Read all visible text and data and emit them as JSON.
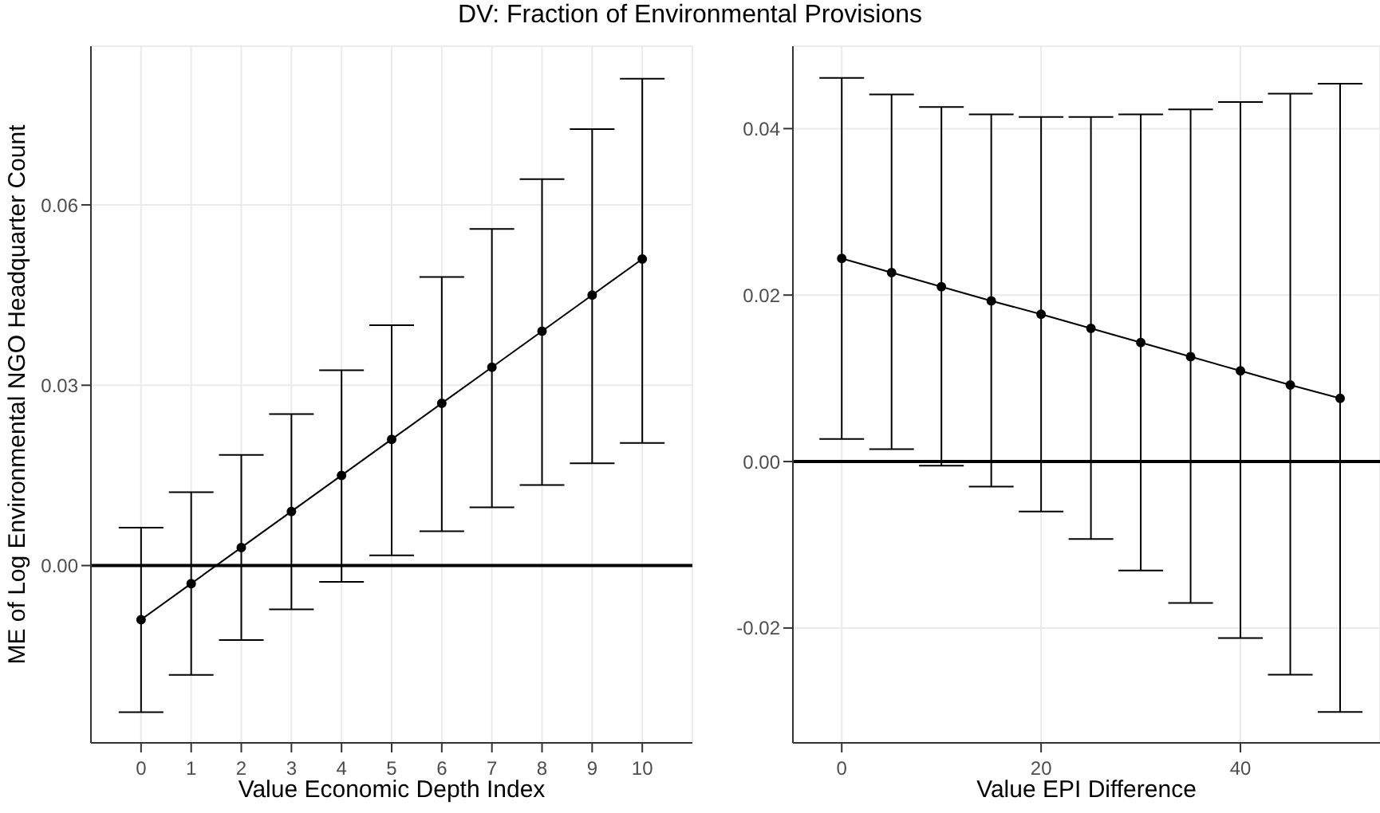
{
  "chart_data": [
    {
      "type": "line",
      "title": "DV: Fraction of Environmental Provisions",
      "xlabel": "Value Economic Depth Index",
      "ylabel": "ME of Log Environmental NGO Headquarter Count",
      "x": [
        0,
        1,
        2,
        3,
        4,
        5,
        6,
        7,
        8,
        9,
        10
      ],
      "series": [
        {
          "color": "#000000",
          "values": [
            -0.009,
            -0.003,
            0.003,
            0.009,
            0.015,
            0.021,
            0.027,
            0.033,
            0.039,
            0.045,
            0.051
          ],
          "errors": [
            [
              -0.0244,
              0.0063
            ],
            [
              -0.0182,
              0.0122
            ],
            [
              -0.0124,
              0.0184
            ],
            [
              -0.0073,
              0.0252
            ],
            [
              -0.0027,
              0.0325
            ],
            [
              0.0017,
              0.04
            ],
            [
              0.0057,
              0.048
            ],
            [
              0.0097,
              0.056
            ],
            [
              0.0134,
              0.0643
            ],
            [
              0.017,
              0.0726
            ],
            [
              0.0204,
              0.081
            ]
          ]
        }
      ],
      "xlim": [
        -1,
        11
      ],
      "xticks": [
        0,
        1,
        2,
        3,
        4,
        5,
        6,
        7,
        8,
        9,
        10
      ],
      "ylim": [
        -0.0295,
        0.0864
      ],
      "yticks": [
        {
          "value": 0,
          "label": "0.00"
        },
        {
          "value": 0.03,
          "label": "0.03"
        },
        {
          "value": 0.06,
          "label": "0.06"
        }
      ],
      "ref_lines": [
        {
          "axis": "y",
          "value": 0,
          "color": "#000000"
        }
      ],
      "grid": true,
      "marker": "circle",
      "legend": false
    },
    {
      "type": "line",
      "xlabel": "Value EPI Difference",
      "x": [
        0,
        5,
        10,
        15,
        20,
        25,
        30,
        35,
        40,
        45,
        50
      ],
      "series": [
        {
          "color": "#000000",
          "values": [
            0.0244,
            0.0227,
            0.021,
            0.0193,
            0.0177,
            0.016,
            0.0143,
            0.0126,
            0.0109,
            0.0092,
            0.0076
          ],
          "errors": [
            [
              0.0027,
              0.0461
            ],
            [
              0.0015,
              0.0441
            ],
            [
              -0.0005,
              0.0426
            ],
            [
              -0.003,
              0.0417
            ],
            [
              -0.006,
              0.0414
            ],
            [
              -0.0093,
              0.0414
            ],
            [
              -0.0131,
              0.0417
            ],
            [
              -0.017,
              0.0423
            ],
            [
              -0.0212,
              0.0432
            ],
            [
              -0.0256,
              0.0442
            ],
            [
              -0.0301,
              0.0454
            ]
          ]
        }
      ],
      "xlim": [
        -4.9,
        54
      ],
      "xticks": [
        0,
        20,
        40
      ],
      "ylim": [
        -0.0338,
        0.0499
      ],
      "yticks": [
        {
          "value": -0.02,
          "label": "-0.02"
        },
        {
          "value": 0,
          "label": "0.00"
        },
        {
          "value": 0.02,
          "label": "0.02"
        },
        {
          "value": 0.04,
          "label": "0.04"
        }
      ],
      "ref_lines": [
        {
          "axis": "y",
          "value": 0,
          "color": "#000000"
        }
      ],
      "grid": true,
      "marker": "circle",
      "legend": false
    }
  ]
}
